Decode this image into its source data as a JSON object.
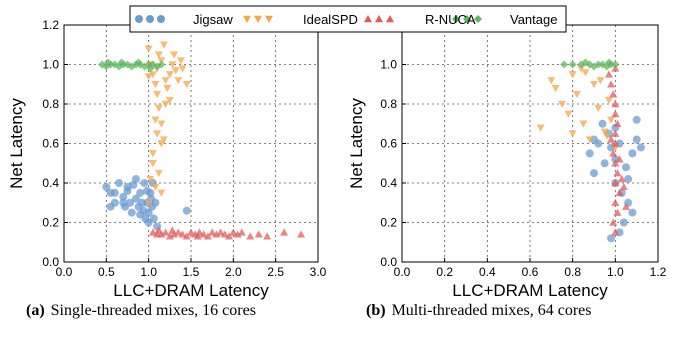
{
  "legend": [
    {
      "name": "Jigsaw",
      "color": "#6b9bd1",
      "marker": "circle"
    },
    {
      "name": "IdealSPD",
      "color": "#f6a64a",
      "marker": "triangle-down"
    },
    {
      "name": "R-NUCA",
      "color": "#e15b5b",
      "marker": "triangle-up"
    },
    {
      "name": "Vantage",
      "color": "#5cb85c",
      "marker": "diamond"
    }
  ],
  "captions": [
    {
      "label": "(a)",
      "text": "Single-threaded mixes, 16 cores"
    },
    {
      "label": "(b)",
      "text": "Multi-threaded mixes, 64 cores"
    }
  ],
  "chart_data": [
    {
      "type": "scatter",
      "xlabel": "LLC+DRAM Latency",
      "ylabel": "Net Latency",
      "xlim": [
        0.0,
        3.0
      ],
      "ylim": [
        0.0,
        1.2
      ],
      "xticks": [
        "0.0",
        "0.5",
        "1.0",
        "1.5",
        "2.0",
        "2.5",
        "3.0"
      ],
      "yticks": [
        "0.0",
        "0.2",
        "0.4",
        "0.6",
        "0.8",
        "1.0",
        "1.2"
      ],
      "grid": true,
      "series": [
        {
          "name": "Jigsaw",
          "points": [
            [
              0.5,
              0.38
            ],
            [
              0.55,
              0.35
            ],
            [
              0.6,
              0.3
            ],
            [
              0.65,
              0.4
            ],
            [
              0.7,
              0.33
            ],
            [
              0.72,
              0.28
            ],
            [
              0.75,
              0.36
            ],
            [
              0.78,
              0.3
            ],
            [
              0.8,
              0.25
            ],
            [
              0.82,
              0.39
            ],
            [
              0.85,
              0.32
            ],
            [
              0.88,
              0.28
            ],
            [
              0.9,
              0.35
            ],
            [
              0.92,
              0.3
            ],
            [
              0.94,
              0.26
            ],
            [
              0.96,
              0.22
            ],
            [
              0.98,
              0.3
            ],
            [
              1.0,
              0.25
            ],
            [
              1.0,
              0.2
            ],
            [
              1.02,
              0.35
            ],
            [
              1.04,
              0.28
            ],
            [
              1.05,
              0.4
            ],
            [
              1.06,
              0.22
            ],
            [
              1.08,
              0.3
            ],
            [
              1.1,
              0.18
            ],
            [
              0.95,
              0.4
            ],
            [
              0.85,
              0.42
            ],
            [
              0.7,
              0.3
            ],
            [
              0.6,
              0.35
            ],
            [
              0.55,
              0.28
            ],
            [
              1.45,
              0.26
            ],
            [
              0.75,
              0.38
            ],
            [
              0.9,
              0.24
            ],
            [
              1.03,
              0.32
            ],
            [
              0.98,
              0.36
            ]
          ]
        },
        {
          "name": "IdealSPD",
          "points": [
            [
              1.0,
              1.08
            ],
            [
              1.02,
              1.0
            ],
            [
              1.05,
              0.95
            ],
            [
              1.08,
              0.9
            ],
            [
              1.1,
              0.85
            ],
            [
              1.12,
              0.78
            ],
            [
              1.15,
              0.7
            ],
            [
              1.18,
              0.62
            ],
            [
              1.1,
              0.98
            ],
            [
              1.15,
              1.02
            ],
            [
              1.2,
              0.92
            ],
            [
              1.22,
              0.88
            ],
            [
              1.25,
              0.95
            ],
            [
              1.28,
              1.0
            ],
            [
              1.3,
              1.05
            ],
            [
              1.35,
              0.92
            ],
            [
              1.4,
              0.98
            ],
            [
              1.45,
              0.9
            ],
            [
              1.2,
              0.8
            ],
            [
              1.15,
              0.6
            ],
            [
              1.05,
              0.5
            ],
            [
              1.08,
              0.72
            ],
            [
              1.12,
              1.05
            ],
            [
              1.25,
              0.82
            ],
            [
              1.32,
              0.97
            ],
            [
              1.38,
              1.02
            ],
            [
              1.0,
              0.94
            ],
            [
              1.18,
              1.1
            ],
            [
              1.1,
              0.65
            ],
            [
              1.05,
              0.55
            ],
            [
              1.12,
              0.45
            ],
            [
              1.08,
              0.38
            ],
            [
              1.02,
              0.42
            ],
            [
              1.0,
              0.3
            ],
            [
              1.15,
              0.35
            ]
          ]
        },
        {
          "name": "R-NUCA",
          "points": [
            [
              1.05,
              0.15
            ],
            [
              1.1,
              0.14
            ],
            [
              1.15,
              0.14
            ],
            [
              1.2,
              0.15
            ],
            [
              1.25,
              0.13
            ],
            [
              1.3,
              0.14
            ],
            [
              1.35,
              0.15
            ],
            [
              1.4,
              0.14
            ],
            [
              1.45,
              0.13
            ],
            [
              1.5,
              0.15
            ],
            [
              1.55,
              0.14
            ],
            [
              1.6,
              0.15
            ],
            [
              1.65,
              0.14
            ],
            [
              1.7,
              0.13
            ],
            [
              1.75,
              0.15
            ],
            [
              1.8,
              0.14
            ],
            [
              1.85,
              0.15
            ],
            [
              1.9,
              0.14
            ],
            [
              1.95,
              0.13
            ],
            [
              2.0,
              0.15
            ],
            [
              2.05,
              0.14
            ],
            [
              2.1,
              0.15
            ],
            [
              2.2,
              0.13
            ],
            [
              2.3,
              0.14
            ],
            [
              2.4,
              0.13
            ],
            [
              2.6,
              0.15
            ],
            [
              2.8,
              0.14
            ],
            [
              1.12,
              0.16
            ],
            [
              1.28,
              0.16
            ],
            [
              1.58,
              0.13
            ]
          ]
        },
        {
          "name": "Vantage",
          "points": [
            [
              0.45,
              1.0
            ],
            [
              0.5,
              0.99
            ],
            [
              0.55,
              1.0
            ],
            [
              0.6,
              1.0
            ],
            [
              0.65,
              0.99
            ],
            [
              0.7,
              1.0
            ],
            [
              0.75,
              1.0
            ],
            [
              0.8,
              0.99
            ],
            [
              0.85,
              1.0
            ],
            [
              0.9,
              1.0
            ],
            [
              0.95,
              0.99
            ],
            [
              1.0,
              1.0
            ],
            [
              1.05,
              1.0
            ],
            [
              1.1,
              0.99
            ],
            [
              1.15,
              1.0
            ],
            [
              0.52,
              1.01
            ],
            [
              0.68,
              1.01
            ],
            [
              0.88,
              1.01
            ],
            [
              1.02,
              0.98
            ]
          ]
        }
      ]
    },
    {
      "type": "scatter",
      "xlabel": "LLC+DRAM Latency",
      "ylabel": "Net Latency",
      "xlim": [
        0.0,
        1.2
      ],
      "ylim": [
        0.0,
        1.2
      ],
      "xticks": [
        "0.0",
        "0.2",
        "0.4",
        "0.6",
        "0.8",
        "1.0",
        "1.2"
      ],
      "yticks": [
        "0.0",
        "0.2",
        "0.4",
        "0.6",
        "0.8",
        "1.0",
        "1.2"
      ],
      "grid": true,
      "series": [
        {
          "name": "Jigsaw",
          "points": [
            [
              0.88,
              0.55
            ],
            [
              0.9,
              0.45
            ],
            [
              0.92,
              0.6
            ],
            [
              0.95,
              0.5
            ],
            [
              0.97,
              0.65
            ],
            [
              0.98,
              0.58
            ],
            [
              1.0,
              0.4
            ],
            [
              1.0,
              0.52
            ],
            [
              1.02,
              0.6
            ],
            [
              1.03,
              0.35
            ],
            [
              1.05,
              0.48
            ],
            [
              1.06,
              0.3
            ],
            [
              1.08,
              0.55
            ],
            [
              1.1,
              0.62
            ],
            [
              1.1,
              0.72
            ],
            [
              1.08,
              0.25
            ],
            [
              1.04,
              0.2
            ],
            [
              1.02,
              0.15
            ],
            [
              0.98,
              0.12
            ],
            [
              0.94,
              0.7
            ],
            [
              1.12,
              0.58
            ],
            [
              0.9,
              0.62
            ],
            [
              1.0,
              0.68
            ],
            [
              1.06,
              0.42
            ]
          ]
        },
        {
          "name": "IdealSPD",
          "points": [
            [
              0.65,
              0.68
            ],
            [
              0.7,
              0.92
            ],
            [
              0.72,
              0.88
            ],
            [
              0.75,
              0.8
            ],
            [
              0.78,
              0.75
            ],
            [
              0.8,
              0.95
            ],
            [
              0.82,
              0.85
            ],
            [
              0.85,
              0.7
            ],
            [
              0.88,
              0.62
            ],
            [
              0.9,
              0.9
            ],
            [
              0.92,
              0.78
            ],
            [
              0.95,
              0.66
            ],
            [
              0.97,
              0.82
            ],
            [
              1.0,
              0.58
            ],
            [
              0.98,
              0.72
            ],
            [
              0.86,
              0.96
            ],
            [
              0.93,
              0.92
            ],
            [
              0.8,
              0.65
            ],
            [
              0.84,
              0.98
            ],
            [
              0.96,
              0.64
            ]
          ]
        },
        {
          "name": "R-NUCA",
          "points": [
            [
              0.97,
              0.95
            ],
            [
              0.98,
              0.9
            ],
            [
              0.99,
              0.85
            ],
            [
              1.0,
              0.8
            ],
            [
              1.0,
              0.75
            ],
            [
              1.01,
              0.7
            ],
            [
              1.0,
              0.65
            ],
            [
              1.0,
              0.6
            ],
            [
              0.99,
              0.55
            ],
            [
              1.0,
              0.5
            ],
            [
              1.01,
              0.45
            ],
            [
              1.0,
              0.4
            ],
            [
              1.02,
              0.35
            ],
            [
              1.0,
              0.3
            ],
            [
              1.01,
              0.25
            ],
            [
              0.99,
              0.2
            ],
            [
              1.0,
              0.15
            ],
            [
              1.03,
              0.42
            ],
            [
              1.05,
              0.28
            ],
            [
              0.98,
              0.62
            ],
            [
              1.02,
              0.52
            ],
            [
              1.04,
              0.38
            ],
            [
              1.0,
              0.98
            ]
          ]
        },
        {
          "name": "Vantage",
          "points": [
            [
              0.76,
              1.0
            ],
            [
              0.8,
              1.0
            ],
            [
              0.84,
              1.0
            ],
            [
              0.88,
              1.0
            ],
            [
              0.9,
              0.99
            ],
            [
              0.92,
              1.0
            ],
            [
              0.94,
              1.0
            ],
            [
              0.96,
              0.99
            ],
            [
              0.98,
              1.0
            ],
            [
              1.0,
              1.0
            ],
            [
              0.86,
              1.01
            ],
            [
              0.97,
              1.01
            ]
          ]
        }
      ]
    }
  ]
}
